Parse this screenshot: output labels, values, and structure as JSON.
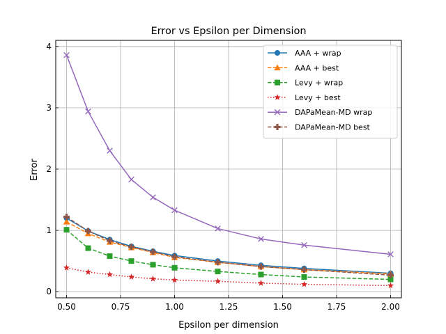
{
  "chart_data": {
    "type": "line",
    "title": "Error vs Epsilon per Dimension",
    "xlabel": "Epsilon per dimension",
    "ylabel": "Error",
    "x": [
      0.5,
      0.6,
      0.7,
      0.8,
      0.9,
      1.0,
      1.2,
      1.4,
      1.6,
      2.0
    ],
    "xlim": [
      0.45,
      2.05
    ],
    "ylim": [
      -0.1,
      4.1
    ],
    "xticks": [
      0.5,
      0.75,
      1.0,
      1.25,
      1.5,
      1.75,
      2.0
    ],
    "xtick_labels": [
      "0.50",
      "0.75",
      "1.00",
      "1.25",
      "1.50",
      "1.75",
      "2.00"
    ],
    "yticks": [
      0,
      1,
      2,
      3,
      4
    ],
    "ytick_labels": [
      "0",
      "1",
      "2",
      "3",
      "4"
    ],
    "grid": true,
    "legend_position": "top-right",
    "series": [
      {
        "name": "AAA + wrap",
        "values": [
          1.2,
          0.99,
          0.85,
          0.74,
          0.66,
          0.59,
          0.5,
          0.43,
          0.38,
          0.3
        ],
        "color": "#1f77b4",
        "dash": "solid",
        "marker": "circle"
      },
      {
        "name": "AAA + best",
        "values": [
          1.14,
          0.95,
          0.81,
          0.72,
          0.64,
          0.56,
          0.48,
          0.41,
          0.36,
          0.29
        ],
        "color": "#ff7f0e",
        "dash": "dashed",
        "marker": "triangle"
      },
      {
        "name": "Levy + wrap",
        "values": [
          1.01,
          0.71,
          0.58,
          0.5,
          0.44,
          0.39,
          0.33,
          0.28,
          0.24,
          0.2
        ],
        "color": "#2ca02c",
        "dash": "dashed",
        "marker": "square"
      },
      {
        "name": "Levy + best",
        "values": [
          0.39,
          0.32,
          0.28,
          0.24,
          0.21,
          0.19,
          0.17,
          0.14,
          0.12,
          0.1
        ],
        "color": "#d62728",
        "dash": "dotted",
        "marker": "star"
      },
      {
        "name": "DAPaMean-MD wrap",
        "values": [
          3.86,
          2.94,
          2.3,
          1.83,
          1.54,
          1.33,
          1.03,
          0.86,
          0.76,
          0.61
        ],
        "color": "#9467bd",
        "dash": "solid",
        "marker": "x"
      },
      {
        "name": "DAPaMean-MD best",
        "values": [
          1.22,
          0.99,
          0.83,
          0.73,
          0.65,
          0.57,
          0.48,
          0.41,
          0.36,
          0.27
        ],
        "color": "#8c564b",
        "dash": "dashed",
        "marker": "plus"
      }
    ]
  }
}
